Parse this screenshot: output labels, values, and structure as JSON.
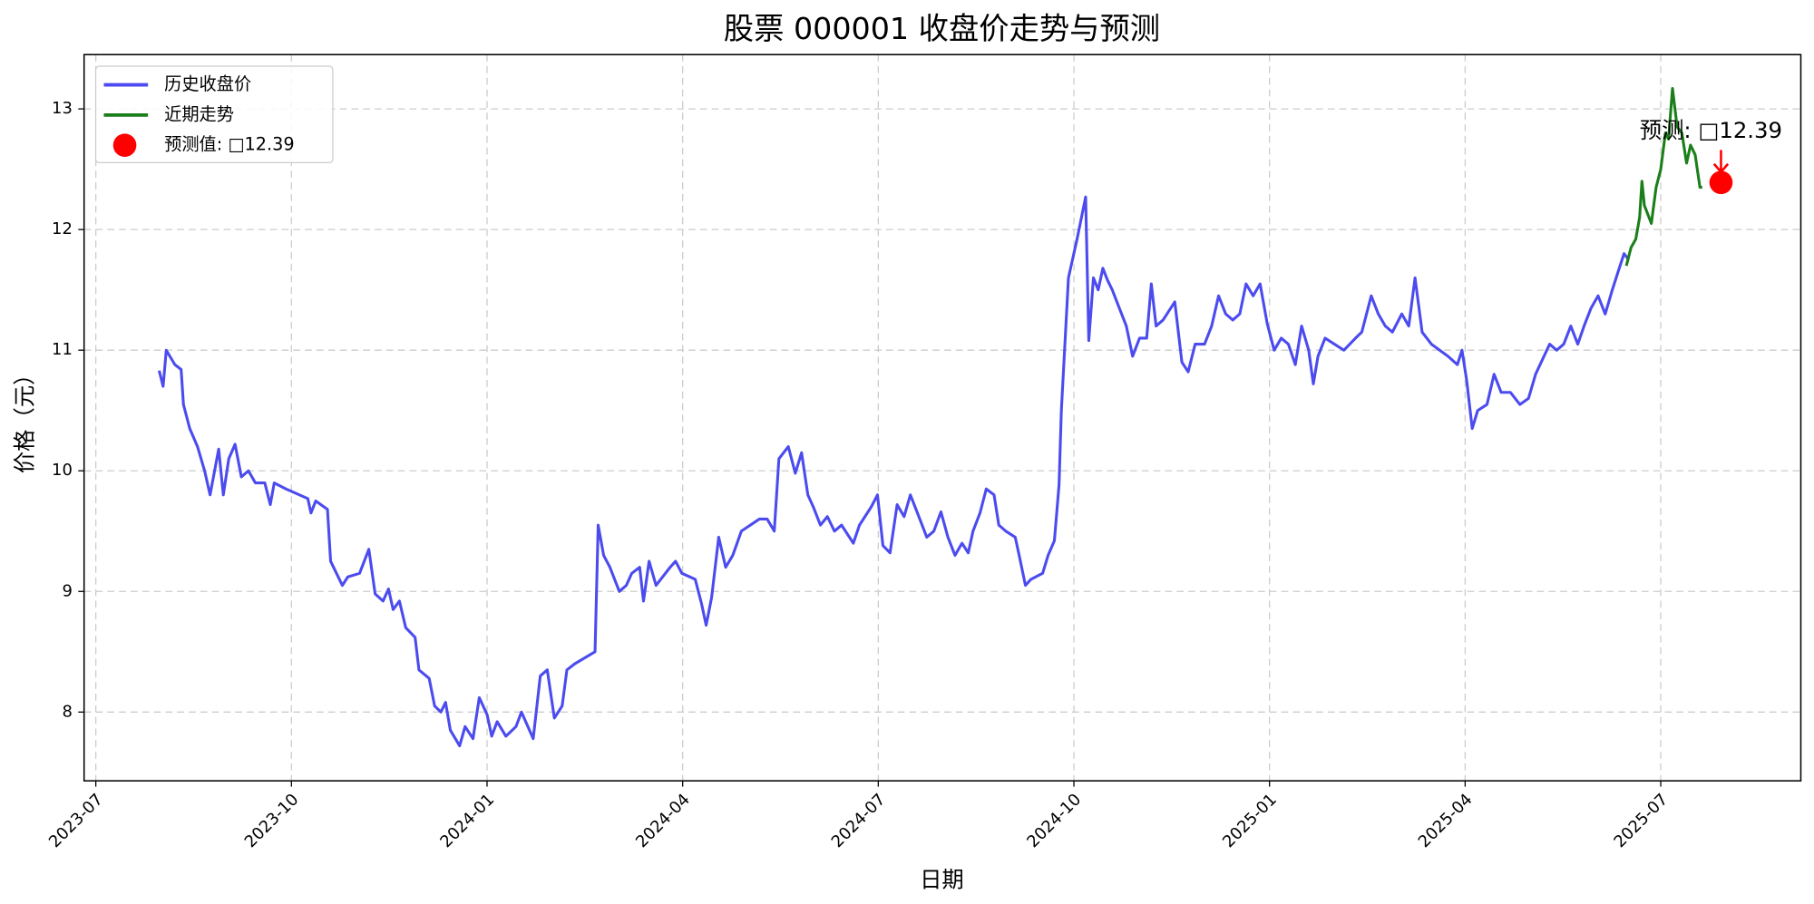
{
  "chart_data": {
    "type": "line",
    "title": "股票 000001 收盘价走势与预测",
    "x_label": "日期",
    "y_label": "价格（元）",
    "xlim": [
      2023.485,
      2025.679
    ],
    "ylim": [
      7.43,
      13.45
    ],
    "xticks": [
      {
        "value": 2023.5,
        "label": "2023-07"
      },
      {
        "value": 2023.75,
        "label": "2023-10"
      },
      {
        "value": 2024.0,
        "label": "2024-01"
      },
      {
        "value": 2024.25,
        "label": "2024-04"
      },
      {
        "value": 2024.5,
        "label": "2024-07"
      },
      {
        "value": 2024.75,
        "label": "2024-10"
      },
      {
        "value": 2025.0,
        "label": "2025-01"
      },
      {
        "value": 2025.25,
        "label": "2025-04"
      },
      {
        "value": 2025.5,
        "label": "2025-07"
      }
    ],
    "yticks": [
      8,
      9,
      10,
      11,
      12,
      13
    ],
    "grid": true,
    "legend": "upper left",
    "annotation": "预测: □12.39",
    "series": [
      {
        "name": "历史收盘价",
        "type": "line",
        "color": "#4b4bef",
        "x": [
          2023.581,
          2023.586,
          2023.59,
          2023.601,
          2023.609,
          2023.612,
          2023.62,
          2023.63,
          2023.639,
          2023.646,
          2023.657,
          2023.663,
          2023.67,
          2023.678,
          2023.686,
          2023.695,
          2023.704,
          2023.716,
          2023.723,
          2023.728,
          2023.743,
          2023.771,
          2023.775,
          2023.781,
          2023.796,
          2023.8,
          2023.815,
          2023.822,
          2023.837,
          2023.849,
          2023.857,
          2023.867,
          2023.874,
          2023.88,
          2023.888,
          2023.896,
          2023.908,
          2023.913,
          2023.926,
          2023.933,
          2023.941,
          2023.947,
          2023.953,
          2023.965,
          2023.972,
          2023.982,
          2023.99,
          2024.0,
          2024.006,
          2024.013,
          2024.024,
          2024.037,
          2024.044,
          2024.059,
          2024.068,
          2024.077,
          2024.086,
          2024.096,
          2024.102,
          2024.112,
          2024.138,
          2024.142,
          2024.149,
          2024.157,
          2024.169,
          2024.178,
          2024.185,
          2024.195,
          2024.2,
          2024.207,
          2024.216,
          2024.234,
          2024.241,
          2024.249,
          2024.266,
          2024.274,
          2024.28,
          2024.287,
          2024.296,
          2024.305,
          2024.314,
          2024.325,
          2024.348,
          2024.358,
          2024.367,
          2024.373,
          2024.385,
          2024.394,
          2024.402,
          2024.41,
          2024.417,
          2024.426,
          2024.435,
          2024.444,
          2024.453,
          2024.468,
          2024.476,
          2024.491,
          2024.499,
          2024.506,
          2024.515,
          2024.524,
          2024.533,
          2024.541,
          2024.55,
          2024.562,
          2024.571,
          2024.58,
          2024.589,
          2024.598,
          2024.607,
          2024.615,
          2024.621,
          2024.63,
          2024.638,
          2024.648,
          2024.654,
          2024.663,
          2024.675,
          2024.68,
          2024.688,
          2024.695,
          2024.71,
          2024.717,
          2024.725,
          2024.731,
          2024.734,
          2024.743,
          2024.754,
          2024.765,
          2024.769,
          2024.775,
          2024.781,
          2024.787,
          2024.793,
          2024.799,
          2024.808,
          2024.817,
          2024.825,
          2024.834,
          2024.843,
          2024.849,
          2024.855,
          2024.864,
          2024.879,
          2024.888,
          2024.896,
          2024.905,
          2024.917,
          2024.926,
          2024.935,
          2024.944,
          2024.953,
          2024.962,
          2024.97,
          2024.979,
          2024.988,
          2024.997,
          2025.006,
          2025.015,
          2025.024,
          2025.033,
          2025.041,
          2025.05,
          2025.056,
          2025.062,
          2025.071,
          2025.095,
          2025.11,
          2025.118,
          2025.13,
          2025.139,
          2025.148,
          2025.157,
          2025.169,
          2025.178,
          2025.186,
          2025.195,
          2025.207,
          2025.228,
          2025.24,
          2025.246,
          2025.252,
          2025.259,
          2025.266,
          2025.278,
          2025.287,
          2025.296,
          2025.308,
          2025.32,
          2025.331,
          2025.34,
          2025.358,
          2025.367,
          2025.376,
          2025.385,
          2025.394,
          2025.402,
          2025.411,
          2025.42,
          2025.429,
          2025.438,
          2025.447,
          2025.453,
          2025.459
        ],
        "values": [
          10.83,
          10.7,
          11.0,
          10.88,
          10.84,
          10.55,
          10.35,
          10.2,
          10.0,
          9.8,
          10.18,
          9.8,
          10.1,
          10.22,
          9.95,
          10.0,
          9.9,
          9.9,
          9.72,
          9.9,
          9.85,
          9.77,
          9.65,
          9.75,
          9.68,
          9.25,
          9.05,
          9.12,
          9.15,
          9.35,
          8.98,
          8.92,
          9.02,
          8.85,
          8.92,
          8.7,
          8.62,
          8.35,
          8.28,
          8.05,
          8.0,
          8.08,
          7.85,
          7.72,
          7.88,
          7.78,
          8.12,
          7.98,
          7.8,
          7.92,
          7.8,
          7.88,
          8.0,
          7.78,
          8.3,
          8.35,
          7.95,
          8.05,
          8.35,
          8.4,
          8.5,
          9.55,
          9.3,
          9.2,
          9.0,
          9.05,
          9.15,
          9.2,
          8.92,
          9.25,
          9.05,
          9.2,
          9.25,
          9.15,
          9.1,
          8.9,
          8.72,
          8.95,
          9.45,
          9.2,
          9.3,
          9.5,
          9.6,
          9.6,
          9.5,
          10.1,
          10.2,
          9.98,
          10.15,
          9.8,
          9.7,
          9.55,
          9.62,
          9.5,
          9.55,
          9.4,
          9.55,
          9.7,
          9.8,
          9.38,
          9.32,
          9.72,
          9.62,
          9.8,
          9.65,
          9.45,
          9.5,
          9.66,
          9.45,
          9.3,
          9.4,
          9.32,
          9.5,
          9.65,
          9.85,
          9.8,
          9.55,
          9.5,
          9.45,
          9.3,
          9.05,
          9.1,
          9.15,
          9.3,
          9.42,
          9.88,
          10.5,
          11.6,
          11.92,
          12.27,
          11.08,
          11.6,
          11.5,
          11.68,
          11.58,
          11.5,
          11.35,
          11.2,
          10.95,
          11.1,
          11.1,
          11.55,
          11.2,
          11.25,
          11.4,
          10.9,
          10.82,
          11.05,
          11.05,
          11.2,
          11.45,
          11.3,
          11.25,
          11.3,
          11.55,
          11.45,
          11.55,
          11.22,
          11.0,
          11.1,
          11.05,
          10.88,
          11.2,
          11.0,
          10.72,
          10.95,
          11.1,
          11.0,
          11.1,
          11.15,
          11.45,
          11.3,
          11.2,
          11.15,
          11.3,
          11.2,
          11.6,
          11.15,
          11.05,
          10.95,
          10.88,
          11.0,
          10.75,
          10.35,
          10.5,
          10.55,
          10.8,
          10.65,
          10.65,
          10.55,
          10.6,
          10.8,
          11.05,
          11.0,
          11.05,
          11.2,
          11.05,
          11.2,
          11.35,
          11.45,
          11.3,
          11.5,
          11.68,
          11.8,
          11.75
        ]
      },
      {
        "name": "近期走势",
        "type": "line",
        "color": "#1a7f1a",
        "x": [
          2025.456,
          2025.462,
          2025.468,
          2025.473,
          2025.476,
          2025.479,
          2025.488,
          2025.494,
          2025.5,
          2025.506,
          2025.51,
          2025.515,
          2025.521,
          2025.527,
          2025.533,
          2025.538,
          2025.544,
          2025.55,
          2025.553
        ],
        "values": [
          11.7,
          11.85,
          11.92,
          12.1,
          12.4,
          12.2,
          12.05,
          12.35,
          12.5,
          12.8,
          12.75,
          13.17,
          12.85,
          12.8,
          12.55,
          12.7,
          12.62,
          12.35,
          12.35
        ]
      },
      {
        "name": "预测值: □12.39",
        "type": "scatter",
        "color": "#ff0000",
        "x": [
          2025.577
        ],
        "values": [
          12.39
        ]
      }
    ]
  }
}
